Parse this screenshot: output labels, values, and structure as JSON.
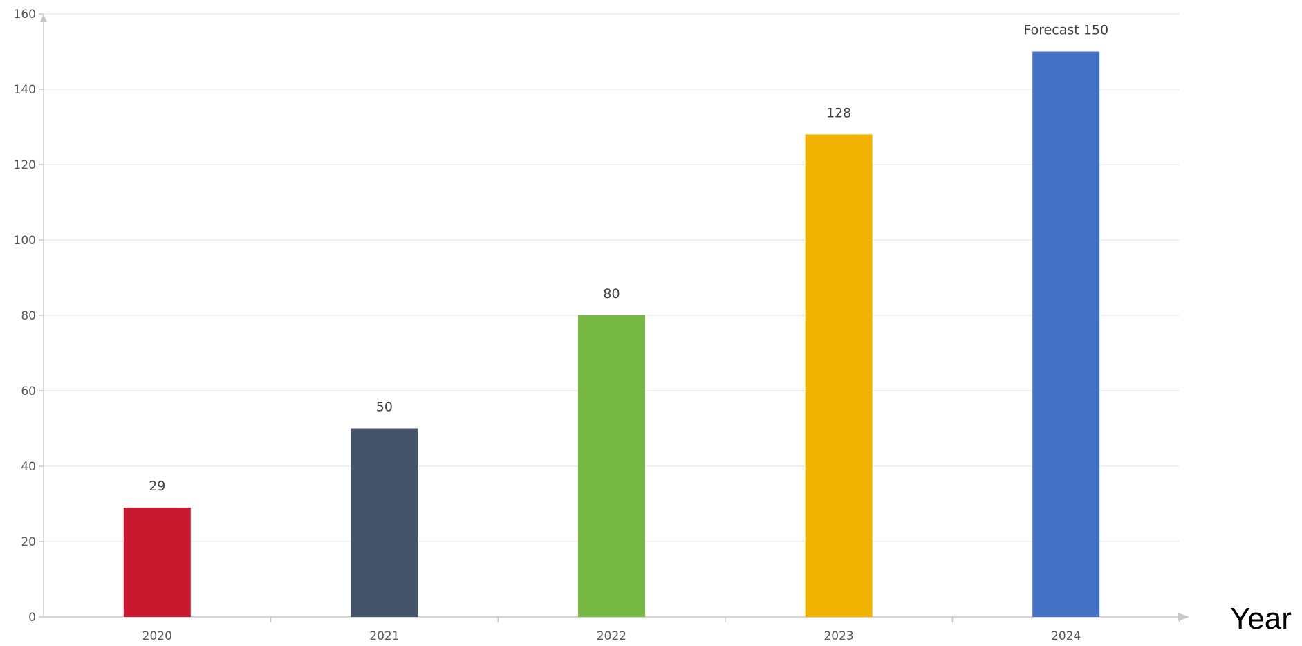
{
  "chart_data": {
    "type": "bar",
    "categories": [
      "2020",
      "2021",
      "2022",
      "2023",
      "2024"
    ],
    "values": [
      29,
      50,
      80,
      128,
      150
    ],
    "data_labels": [
      "29",
      "50",
      "80",
      "128",
      "Forecast 150"
    ],
    "bar_colors": [
      "#C8192E",
      "#44546A",
      "#76B843",
      "#F0B400",
      "#4472C4"
    ],
    "title": "",
    "xlabel": "Year",
    "ylabel": "",
    "ylim": [
      0,
      160
    ],
    "yticks": [
      0,
      20,
      40,
      60,
      80,
      100,
      120,
      140,
      160
    ],
    "grid": true,
    "legend": "none"
  }
}
